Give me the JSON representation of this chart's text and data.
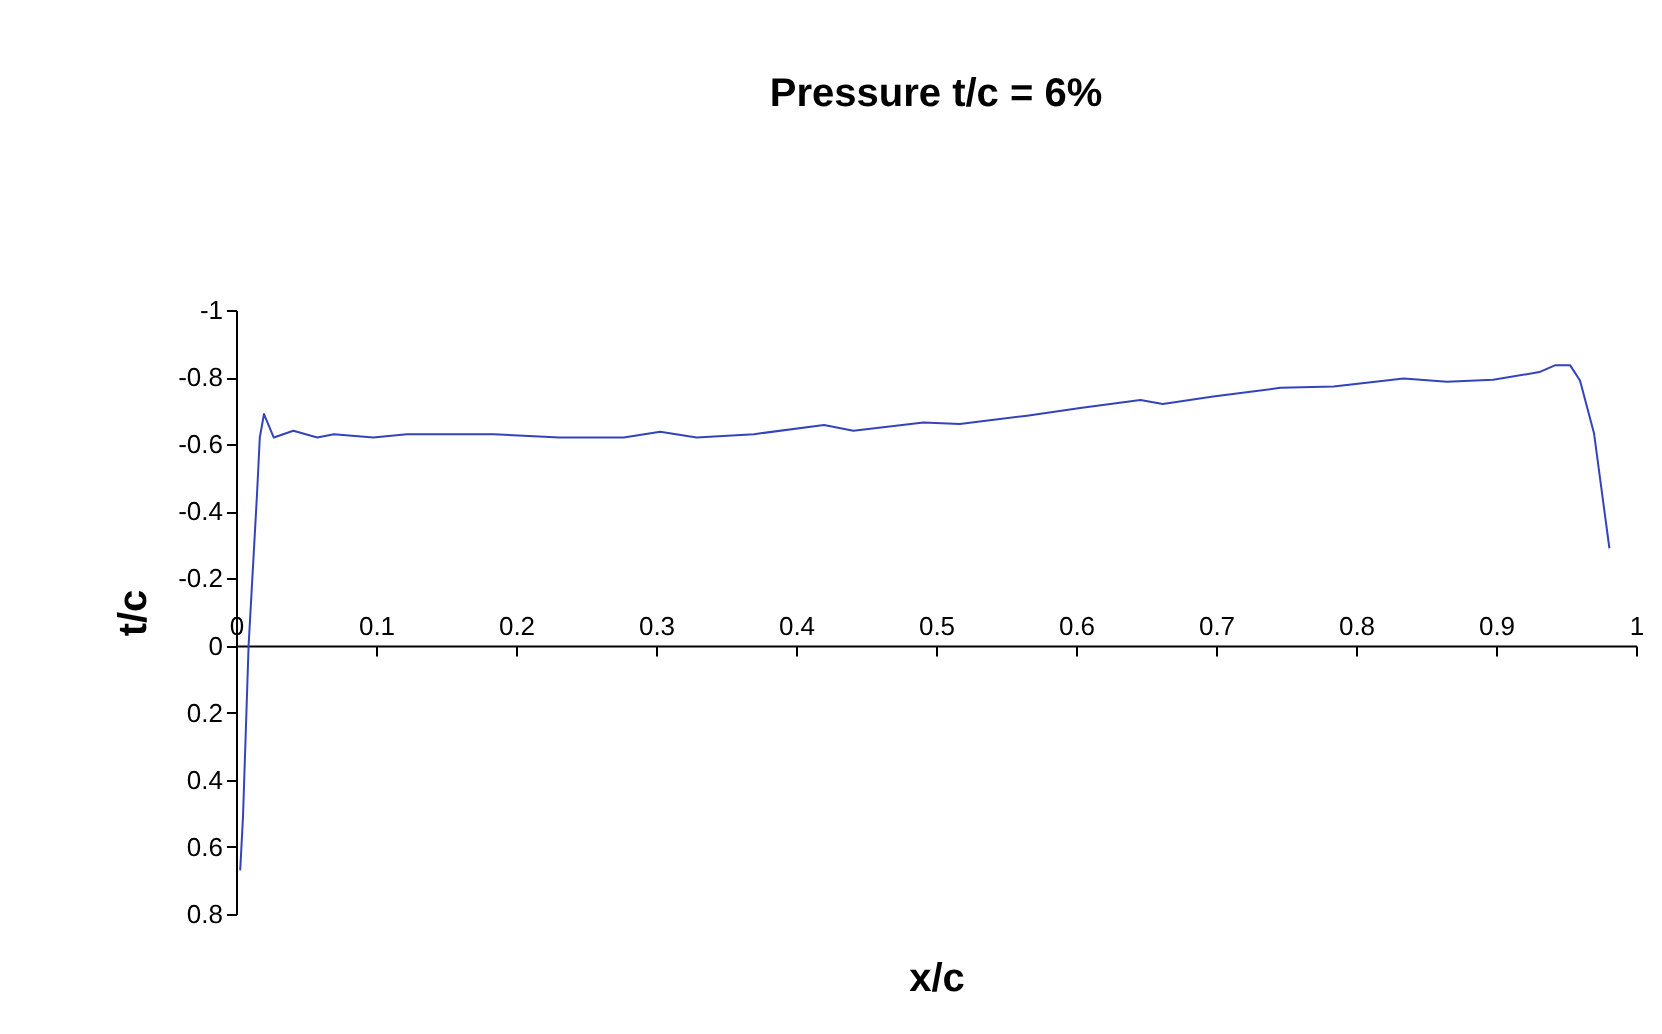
{
  "chart_data": {
    "type": "line",
    "title": "Pressure t/c = 6%",
    "xlabel": "x/c",
    "ylabel": "t/c",
    "x": [
      0.003,
      0.005,
      0.009,
      0.015,
      0.017,
      0.02,
      0.027,
      0.041,
      0.058,
      0.07,
      0.098,
      0.122,
      0.184,
      0.231,
      0.277,
      0.303,
      0.329,
      0.37,
      0.42,
      0.441,
      0.491,
      0.517,
      0.565,
      0.603,
      0.646,
      0.662,
      0.698,
      0.746,
      0.784,
      0.834,
      0.865,
      0.898,
      0.931,
      0.942,
      0.953,
      0.96,
      0.97,
      0.981
    ],
    "series": [
      {
        "color": "#3344bb",
        "values": [
          0.67,
          0.51,
          0,
          -0.45,
          -0.62,
          -0.69,
          -0.62,
          -0.64,
          -0.62,
          -0.63,
          -0.62,
          -0.63,
          -0.63,
          -0.62,
          -0.62,
          -0.637,
          -0.62,
          -0.63,
          -0.657,
          -0.64,
          -0.665,
          -0.66,
          -0.685,
          -0.708,
          -0.732,
          -0.72,
          -0.742,
          -0.768,
          -0.772,
          -0.796,
          -0.786,
          -0.792,
          -0.815,
          -0.835,
          -0.835,
          -0.79,
          -0.633,
          -0.29
        ]
      }
    ],
    "xlim": [
      0,
      1
    ],
    "xticks": [
      0,
      0.1,
      0.2,
      0.3,
      0.4,
      0.5,
      0.6,
      0.7,
      0.8,
      0.9,
      1
    ],
    "ylim": [
      0.8,
      -1
    ],
    "yticks": [
      -1,
      -0.8,
      -0.6,
      -0.4,
      -0.2,
      0,
      0.2,
      0.4,
      0.6,
      0.8
    ],
    "grid": false,
    "legend": false,
    "marker": "none",
    "line_style": "solid"
  }
}
